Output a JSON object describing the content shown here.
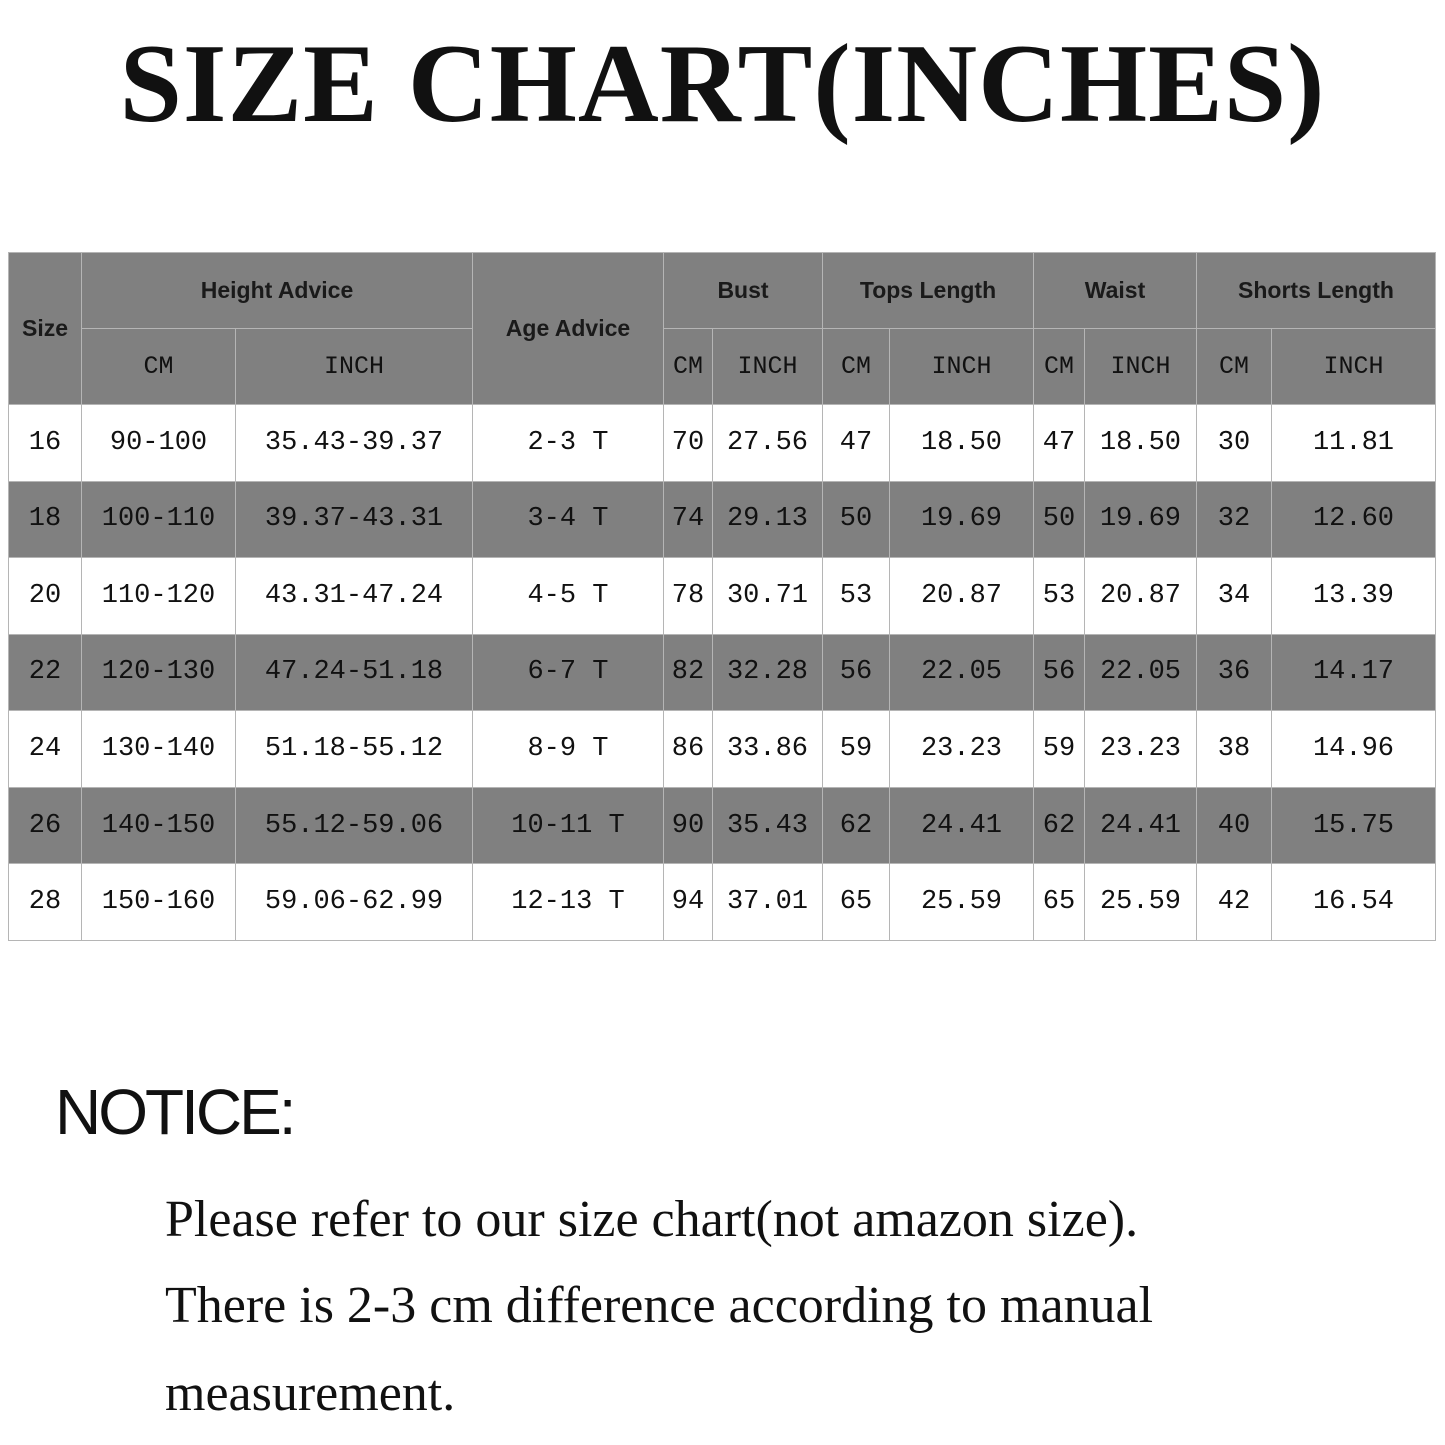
{
  "title": "SIZE CHART(INCHES)",
  "table": {
    "header_groups": [
      "Size",
      "Height Advice",
      "Age Advice",
      "Bust",
      "Tops Length",
      "Waist",
      "Shorts Length"
    ],
    "subheaders": [
      "CM",
      "INCH",
      "CM",
      "INCH",
      "CM",
      "INCH",
      "CM",
      "INCH",
      "CM",
      "INCH"
    ],
    "rows": [
      [
        "16",
        "90-100",
        "35.43-39.37",
        "2-3 T",
        "70",
        "27.56",
        "47",
        "18.50",
        "47",
        "18.50",
        "30",
        "11.81"
      ],
      [
        "18",
        "100-110",
        "39.37-43.31",
        "3-4 T",
        "74",
        "29.13",
        "50",
        "19.69",
        "50",
        "19.69",
        "32",
        "12.60"
      ],
      [
        "20",
        "110-120",
        "43.31-47.24",
        "4-5 T",
        "78",
        "30.71",
        "53",
        "20.87",
        "53",
        "20.87",
        "34",
        "13.39"
      ],
      [
        "22",
        "120-130",
        "47.24-51.18",
        "6-7 T",
        "82",
        "32.28",
        "56",
        "22.05",
        "56",
        "22.05",
        "36",
        "14.17"
      ],
      [
        "24",
        "130-140",
        "51.18-55.12",
        "8-9 T",
        "86",
        "33.86",
        "59",
        "23.23",
        "59",
        "23.23",
        "38",
        "14.96"
      ],
      [
        "26",
        "140-150",
        "55.12-59.06",
        "10-11 T",
        "90",
        "35.43",
        "62",
        "24.41",
        "62",
        "24.41",
        "40",
        "15.75"
      ],
      [
        "28",
        "150-160",
        "59.06-62.99",
        "12-13 T",
        "94",
        "37.01",
        "65",
        "25.59",
        "65",
        "25.59",
        "42",
        "16.54"
      ]
    ]
  },
  "notice": {
    "heading": "NOTICE:",
    "lines": [
      "Please refer to our size chart(not amazon size).",
      "There is 2-3 cm difference according to manual",
      "measurement."
    ]
  }
}
